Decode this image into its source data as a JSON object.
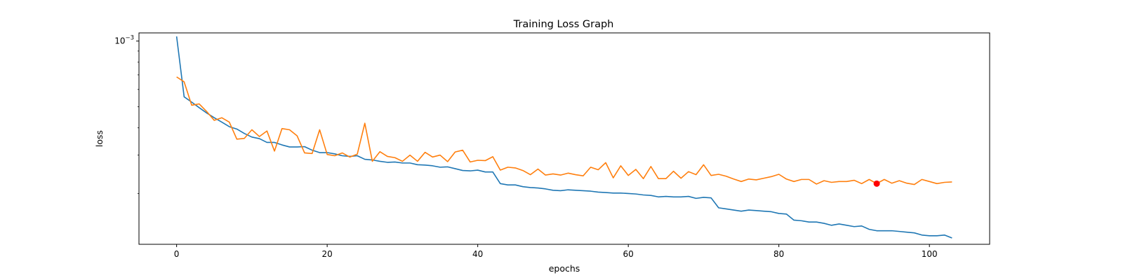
{
  "chart_data": {
    "type": "line",
    "title": "Training Loss Graph",
    "xlabel": "epochs",
    "ylabel": "loss",
    "xlim": [
      -5,
      108
    ],
    "ylim": [
      0.000117,
      0.00109
    ],
    "yscale": "log",
    "grid": false,
    "x_ticks": [
      0,
      20,
      40,
      60,
      80,
      100
    ],
    "x_tick_labels": [
      "0",
      "20",
      "40",
      "60",
      "80",
      "100"
    ],
    "y_major_ticks": [
      0.001
    ],
    "y_major_tick_labels": [
      {
        "base": "10",
        "exp": "−3"
      }
    ],
    "y_minor_ticks": [
      0.0002,
      0.0003,
      0.0004,
      0.0005,
      0.0006,
      0.0007,
      0.0008,
      0.0009
    ],
    "series": [
      {
        "color": "#1f77b4",
        "x": [
          0,
          1,
          2,
          3,
          4,
          5,
          6,
          7,
          8,
          9,
          10,
          11,
          12,
          13,
          14,
          15,
          16,
          17,
          18,
          19,
          20,
          21,
          22,
          23,
          24,
          25,
          26,
          27,
          28,
          29,
          30,
          31,
          32,
          33,
          34,
          35,
          36,
          37,
          38,
          39,
          40,
          41,
          42,
          43,
          44,
          45,
          46,
          47,
          48,
          49,
          50,
          51,
          52,
          53,
          54,
          55,
          56,
          57,
          58,
          59,
          60,
          61,
          62,
          63,
          64,
          65,
          66,
          67,
          68,
          69,
          70,
          71,
          72,
          73,
          74,
          75,
          76,
          77,
          78,
          79,
          80,
          81,
          82,
          83,
          84,
          85,
          86,
          87,
          88,
          89,
          90,
          91,
          92,
          93,
          94,
          95,
          96,
          97,
          98,
          99,
          100,
          101,
          102,
          103
        ],
        "values": [
          0.00105,
          0.000555,
          0.000525,
          0.000495,
          0.000468,
          0.000445,
          0.000425,
          0.000405,
          0.000395,
          0.000377,
          0.000363,
          0.000357,
          0.000343,
          0.000343,
          0.000334,
          0.000327,
          0.000327,
          0.000328,
          0.000316,
          0.000308,
          0.000308,
          0.000304,
          0.000298,
          0.000296,
          0.000298,
          0.000287,
          0.000285,
          0.000281,
          0.000278,
          0.000279,
          0.000276,
          0.000276,
          0.000271,
          0.00027,
          0.000268,
          0.000264,
          0.000265,
          0.00026,
          0.000255,
          0.000254,
          0.000256,
          0.000251,
          0.000251,
          0.000222,
          0.000219,
          0.000219,
          0.000215,
          0.000213,
          0.000212,
          0.00021,
          0.000207,
          0.000206,
          0.000208,
          0.000207,
          0.000206,
          0.000205,
          0.000203,
          0.000202,
          0.000201,
          0.000201,
          0.0002,
          0.000199,
          0.000197,
          0.000196,
          0.000193,
          0.000194,
          0.000193,
          0.000193,
          0.000194,
          0.00019,
          0.000192,
          0.000191,
          0.000172,
          0.00017,
          0.000168,
          0.000166,
          0.000168,
          0.000167,
          0.000166,
          0.000165,
          0.000162,
          0.000161,
          0.000151,
          0.00015,
          0.000148,
          0.000148,
          0.000146,
          0.000143,
          0.000145,
          0.000143,
          0.000141,
          0.000142,
          0.000137,
          0.000135,
          0.000135,
          0.000135,
          0.000134,
          0.000133,
          0.000132,
          0.000129,
          0.000128,
          0.000128,
          0.000129,
          0.000125
        ]
      },
      {
        "color": "#ff7f0e",
        "x": [
          0,
          1,
          2,
          3,
          4,
          5,
          6,
          7,
          8,
          9,
          10,
          11,
          12,
          13,
          14,
          15,
          16,
          17,
          18,
          19,
          20,
          21,
          22,
          23,
          24,
          25,
          26,
          27,
          28,
          29,
          30,
          31,
          32,
          33,
          34,
          35,
          36,
          37,
          38,
          39,
          40,
          41,
          42,
          43,
          44,
          45,
          46,
          47,
          48,
          49,
          50,
          51,
          52,
          53,
          54,
          55,
          56,
          57,
          58,
          59,
          60,
          61,
          62,
          63,
          64,
          65,
          66,
          67,
          68,
          69,
          70,
          71,
          72,
          73,
          74,
          75,
          76,
          77,
          78,
          79,
          80,
          81,
          82,
          83,
          84,
          85,
          86,
          87,
          88,
          89,
          90,
          91,
          92,
          93,
          94,
          95,
          96,
          97,
          98,
          99,
          100,
          101,
          102,
          103
        ],
        "values": [
          0.000685,
          0.00065,
          0.000508,
          0.000515,
          0.000475,
          0.000433,
          0.000445,
          0.000425,
          0.000355,
          0.000358,
          0.000392,
          0.000365,
          0.000387,
          0.000313,
          0.000397,
          0.000392,
          0.000368,
          0.000307,
          0.000305,
          0.000392,
          0.000302,
          0.000298,
          0.000307,
          0.000294,
          0.000303,
          0.00042,
          0.000281,
          0.000311,
          0.000296,
          0.000292,
          0.000281,
          0.0003,
          0.000281,
          0.000309,
          0.000294,
          0.0003,
          0.00028,
          0.00031,
          0.000316,
          0.000279,
          0.000284,
          0.000283,
          0.000295,
          0.000256,
          0.000264,
          0.000262,
          0.000255,
          0.000244,
          0.000259,
          0.000243,
          0.000246,
          0.000243,
          0.000248,
          0.000244,
          0.000241,
          0.000264,
          0.000257,
          0.000277,
          0.000236,
          0.000268,
          0.000242,
          0.000258,
          0.000234,
          0.000266,
          0.000234,
          0.000234,
          0.000253,
          0.000235,
          0.000252,
          0.000244,
          0.000271,
          0.000242,
          0.000245,
          0.00024,
          0.000233,
          0.000227,
          0.000233,
          0.000231,
          0.000235,
          0.000239,
          0.000245,
          0.000233,
          0.000227,
          0.000232,
          0.000232,
          0.000221,
          0.000229,
          0.000225,
          0.000227,
          0.000227,
          0.00023,
          0.000222,
          0.000232,
          0.000222,
          0.000232,
          0.000223,
          0.000229,
          0.000223,
          0.00022,
          0.000232,
          0.000227,
          0.000222,
          0.000225,
          0.000226
        ]
      }
    ],
    "marker": {
      "x": 93,
      "y": 0.000222,
      "color": "#ff0000"
    }
  }
}
